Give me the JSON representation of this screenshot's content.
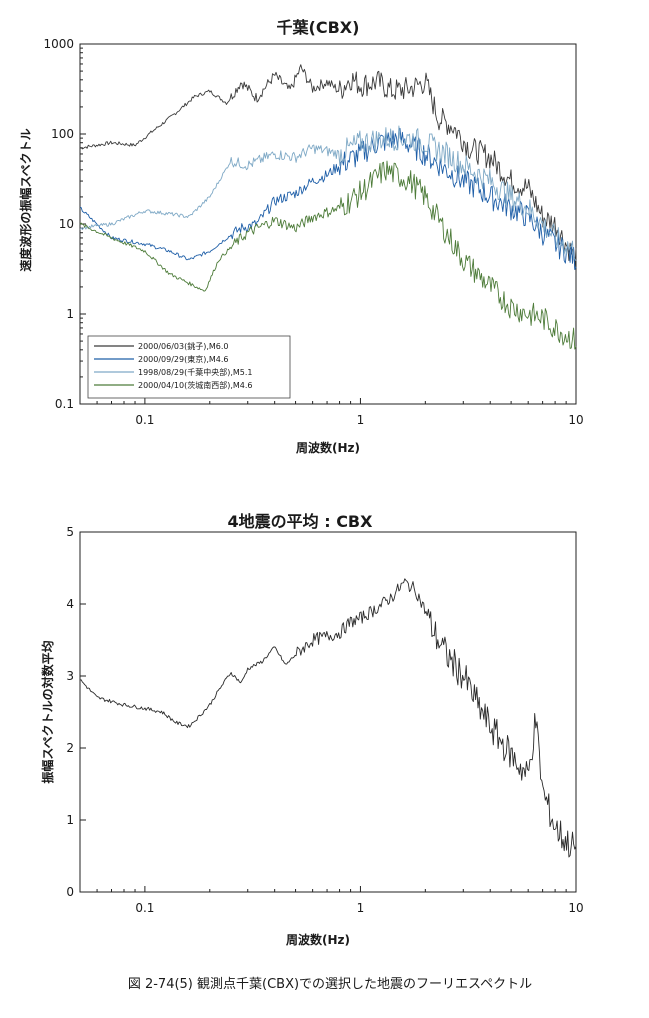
{
  "chart_data": [
    {
      "type": "line",
      "title": "千葉(CBX)",
      "xlabel": "周波数(Hz)",
      "ylabel": "速度波形の振幅スペクトル",
      "xscale": "log",
      "yscale": "log",
      "xlim": [
        0.05,
        10
      ],
      "ylim": [
        0.1,
        1000
      ],
      "xticks": [
        "0.1",
        "1",
        "10"
      ],
      "yticks": [
        "0.1",
        "1",
        "10",
        "100",
        "1000"
      ],
      "legend_position": "bottom-left",
      "series": [
        {
          "name": "2000/06/03(銚子),M6.0",
          "color": "#3a3a3a",
          "x": [
            0.05,
            0.07,
            0.09,
            0.11,
            0.13,
            0.15,
            0.17,
            0.2,
            0.24,
            0.28,
            0.33,
            0.4,
            0.47,
            0.53,
            0.6,
            0.7,
            0.8,
            0.9,
            1.0,
            1.2,
            1.4,
            1.7,
            2.0,
            2.3,
            2.7,
            3.2,
            4.0,
            5.0,
            6.0,
            7.0,
            8.0,
            9.0,
            10.0
          ],
          "y": [
            70,
            80,
            75,
            110,
            150,
            200,
            260,
            300,
            220,
            380,
            250,
            450,
            300,
            550,
            320,
            380,
            300,
            420,
            350,
            380,
            300,
            320,
            380,
            150,
            120,
            70,
            55,
            30,
            25,
            12,
            10,
            6,
            4
          ]
        },
        {
          "name": "2000/09/29(東京),M4.6",
          "color": "#1f5fa8",
          "x": [
            0.05,
            0.07,
            0.1,
            0.13,
            0.16,
            0.2,
            0.24,
            0.28,
            0.33,
            0.4,
            0.5,
            0.6,
            0.7,
            0.8,
            1.0,
            1.2,
            1.5,
            1.8,
            2.0,
            2.5,
            3.0,
            3.5,
            4.0,
            5.0,
            6.0,
            7.0,
            8.0,
            9.0,
            10.0
          ],
          "y": [
            15,
            7,
            6,
            5,
            4,
            5,
            7,
            9,
            10,
            18,
            22,
            30,
            35,
            45,
            60,
            80,
            90,
            70,
            60,
            40,
            30,
            25,
            20,
            15,
            12,
            8,
            6,
            5,
            4
          ]
        },
        {
          "name": "1998/08/29(千葉中央部),M5.1",
          "color": "#7fa9c6",
          "x": [
            0.05,
            0.07,
            0.1,
            0.13,
            0.16,
            0.2,
            0.25,
            0.3,
            0.4,
            0.5,
            0.6,
            0.8,
            1.0,
            1.3,
            1.7,
            2.0,
            2.5,
            3.0,
            4.0,
            5.0,
            6.0,
            7.0,
            8.0,
            10.0
          ],
          "y": [
            9,
            10,
            14,
            13,
            12,
            20,
            50,
            45,
            60,
            55,
            70,
            60,
            80,
            90,
            90,
            80,
            60,
            45,
            30,
            20,
            15,
            10,
            7,
            5
          ]
        },
        {
          "name": "2000/04/10(茨城南西部),M4.6",
          "color": "#4e7c3a",
          "x": [
            0.05,
            0.07,
            0.1,
            0.13,
            0.16,
            0.19,
            0.22,
            0.26,
            0.3,
            0.4,
            0.5,
            0.6,
            0.8,
            1.0,
            1.3,
            1.7,
            2.0,
            2.5,
            3.0,
            4.0,
            5.0,
            6.0,
            7.0,
            8.0,
            10.0
          ],
          "y": [
            10,
            7,
            5,
            2.8,
            2.2,
            1.8,
            4,
            6,
            8,
            11,
            9,
            12,
            15,
            22,
            40,
            30,
            20,
            8,
            4,
            2,
            1.2,
            1,
            0.9,
            0.7,
            0.5
          ]
        }
      ]
    },
    {
      "type": "line",
      "title": "4地震の平均 : CBX",
      "xlabel": "周波数(Hz)",
      "ylabel": "振幅スペクトルの対数平均",
      "xscale": "log",
      "yscale": "linear",
      "xlim": [
        0.05,
        10
      ],
      "ylim": [
        0,
        5
      ],
      "xticks": [
        "0.1",
        "1",
        "10"
      ],
      "yticks": [
        "0",
        "1",
        "2",
        "3",
        "4",
        "5"
      ],
      "series": [
        {
          "color": "#2a2a2a",
          "x": [
            0.05,
            0.06,
            0.08,
            0.1,
            0.12,
            0.14,
            0.16,
            0.18,
            0.2,
            0.22,
            0.25,
            0.28,
            0.3,
            0.35,
            0.4,
            0.45,
            0.5,
            0.6,
            0.7,
            0.8,
            0.9,
            1.0,
            1.2,
            1.4,
            1.6,
            1.8,
            2.0,
            2.2,
            2.5,
            3.0,
            3.5,
            4.0,
            5.0,
            6.0,
            6.5,
            7.0,
            8.0,
            9.0,
            10.0
          ],
          "y": [
            2.95,
            2.7,
            2.6,
            2.55,
            2.5,
            2.35,
            2.3,
            2.45,
            2.6,
            2.8,
            3.05,
            2.9,
            3.1,
            3.2,
            3.4,
            3.15,
            3.3,
            3.5,
            3.55,
            3.6,
            3.75,
            3.8,
            3.95,
            4.1,
            4.3,
            4.2,
            3.9,
            3.6,
            3.3,
            3.0,
            2.6,
            2.3,
            1.9,
            1.6,
            2.4,
            1.4,
            0.9,
            0.7,
            0.6
          ]
        }
      ]
    }
  ],
  "caption": "図 2-74(5) 観測点千葉(CBX)での選択した地震のフーリエスペクトル"
}
